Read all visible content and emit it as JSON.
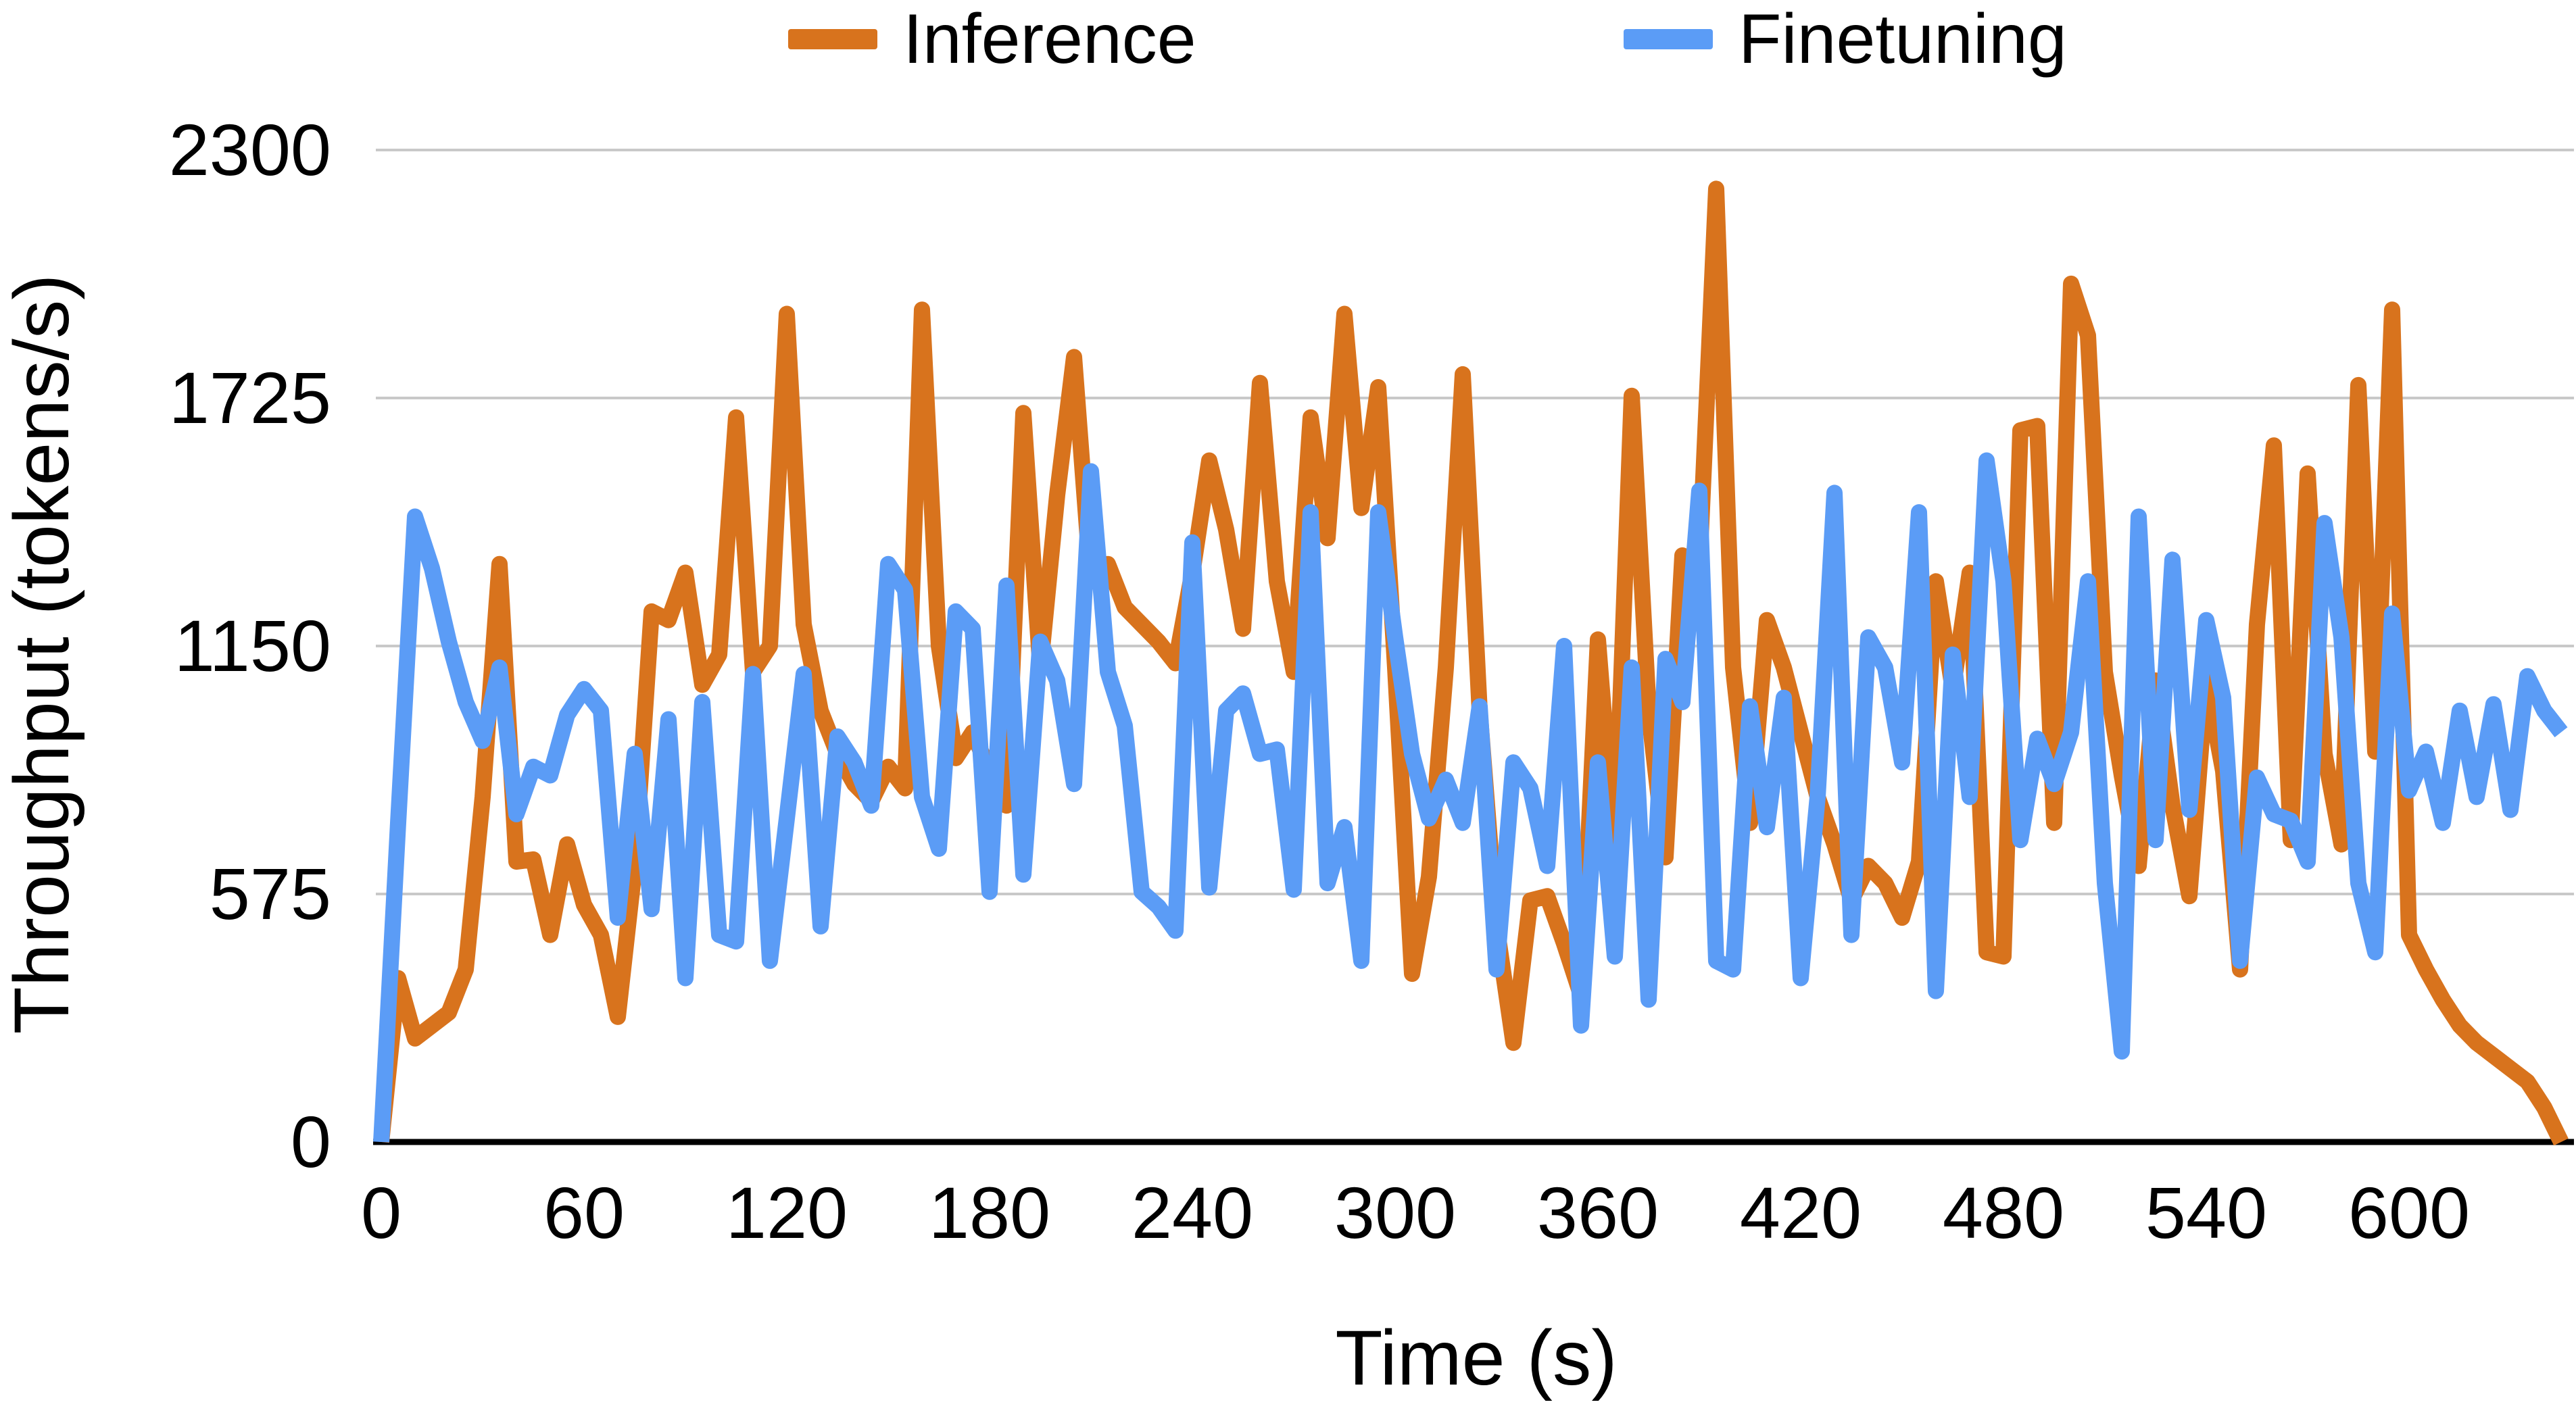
{
  "chart_data": {
    "type": "line",
    "title": "",
    "xlabel": "Time (s)",
    "ylabel": "Throughput (tokens/s)",
    "xlim": [
      0,
      648
    ],
    "ylim": [
      0,
      2300
    ],
    "x_ticks": [
      0,
      60,
      120,
      180,
      240,
      300,
      360,
      420,
      480,
      540,
      600
    ],
    "y_ticks": [
      0,
      575,
      1150,
      1725,
      2300
    ],
    "grid": "horizontal",
    "legend_position": "top",
    "background_color": "#FFFFFF",
    "gridline_color": "#C9C9C9",
    "axis_color": "#000000",
    "text_color": "#000000",
    "series": [
      {
        "name": "Inference",
        "color": "#D8731D",
        "points": [
          [
            0,
            0
          ],
          [
            5,
            380
          ],
          [
            10,
            240
          ],
          [
            15,
            270
          ],
          [
            20,
            300
          ],
          [
            25,
            400
          ],
          [
            30,
            800
          ],
          [
            35,
            1340
          ],
          [
            40,
            650
          ],
          [
            45,
            655
          ],
          [
            50,
            480
          ],
          [
            55,
            690
          ],
          [
            60,
            550
          ],
          [
            65,
            480
          ],
          [
            70,
            290
          ],
          [
            75,
            640
          ],
          [
            80,
            1230
          ],
          [
            85,
            1210
          ],
          [
            90,
            1320
          ],
          [
            95,
            1060
          ],
          [
            100,
            1130
          ],
          [
            105,
            1680
          ],
          [
            110,
            1090
          ],
          [
            115,
            1150
          ],
          [
            120,
            1920
          ],
          [
            125,
            1200
          ],
          [
            130,
            1000
          ],
          [
            135,
            900
          ],
          [
            140,
            830
          ],
          [
            145,
            790
          ],
          [
            150,
            870
          ],
          [
            155,
            820
          ],
          [
            160,
            1930
          ],
          [
            165,
            1150
          ],
          [
            170,
            890
          ],
          [
            175,
            950
          ],
          [
            180,
            860
          ],
          [
            185,
            780
          ],
          [
            190,
            1690
          ],
          [
            195,
            1100
          ],
          [
            200,
            1500
          ],
          [
            205,
            1820
          ],
          [
            210,
            1300
          ],
          [
            215,
            1340
          ],
          [
            220,
            1240
          ],
          [
            225,
            1200
          ],
          [
            230,
            1160
          ],
          [
            235,
            1110
          ],
          [
            240,
            1320
          ],
          [
            245,
            1580
          ],
          [
            250,
            1420
          ],
          [
            255,
            1190
          ],
          [
            260,
            1760
          ],
          [
            265,
            1300
          ],
          [
            270,
            1090
          ],
          [
            275,
            1680
          ],
          [
            280,
            1400
          ],
          [
            285,
            1920
          ],
          [
            290,
            1470
          ],
          [
            295,
            1750
          ],
          [
            300,
            1100
          ],
          [
            305,
            390
          ],
          [
            310,
            615
          ],
          [
            315,
            1100
          ],
          [
            320,
            1780
          ],
          [
            325,
            1000
          ],
          [
            330,
            500
          ],
          [
            335,
            230
          ],
          [
            340,
            560
          ],
          [
            345,
            570
          ],
          [
            350,
            460
          ],
          [
            355,
            340
          ],
          [
            360,
            1165
          ],
          [
            365,
            670
          ],
          [
            370,
            1730
          ],
          [
            375,
            1000
          ],
          [
            380,
            660
          ],
          [
            385,
            1360
          ],
          [
            390,
            1330
          ],
          [
            395,
            2210
          ],
          [
            400,
            1100
          ],
          [
            405,
            740
          ],
          [
            410,
            1210
          ],
          [
            415,
            1100
          ],
          [
            420,
            950
          ],
          [
            425,
            800
          ],
          [
            430,
            690
          ],
          [
            435,
            560
          ],
          [
            440,
            640
          ],
          [
            445,
            600
          ],
          [
            450,
            520
          ],
          [
            455,
            650
          ],
          [
            460,
            1300
          ],
          [
            465,
            1050
          ],
          [
            470,
            1320
          ],
          [
            475,
            440
          ],
          [
            480,
            430
          ],
          [
            485,
            1650
          ],
          [
            490,
            1660
          ],
          [
            495,
            740
          ],
          [
            500,
            1990
          ],
          [
            505,
            1870
          ],
          [
            510,
            1090
          ],
          [
            515,
            850
          ],
          [
            520,
            640
          ],
          [
            525,
            1070
          ],
          [
            530,
            780
          ],
          [
            535,
            570
          ],
          [
            540,
            1070
          ],
          [
            545,
            860
          ],
          [
            550,
            400
          ],
          [
            555,
            1200
          ],
          [
            560,
            1615
          ],
          [
            565,
            700
          ],
          [
            570,
            1550
          ],
          [
            575,
            900
          ],
          [
            580,
            690
          ],
          [
            585,
            1755
          ],
          [
            590,
            905
          ],
          [
            595,
            1930
          ],
          [
            600,
            480
          ],
          [
            605,
            400
          ],
          [
            610,
            330
          ],
          [
            615,
            270
          ],
          [
            620,
            230
          ],
          [
            625,
            200
          ],
          [
            630,
            170
          ],
          [
            635,
            140
          ],
          [
            640,
            80
          ],
          [
            645,
            0
          ]
        ]
      },
      {
        "name": "Finetuning",
        "color": "#5B9CF6",
        "points": [
          [
            0,
            0
          ],
          [
            5,
            740
          ],
          [
            10,
            1450
          ],
          [
            15,
            1330
          ],
          [
            20,
            1160
          ],
          [
            25,
            1020
          ],
          [
            30,
            930
          ],
          [
            35,
            1100
          ],
          [
            40,
            760
          ],
          [
            45,
            870
          ],
          [
            50,
            850
          ],
          [
            55,
            990
          ],
          [
            60,
            1050
          ],
          [
            65,
            1000
          ],
          [
            70,
            520
          ],
          [
            75,
            900
          ],
          [
            80,
            540
          ],
          [
            85,
            980
          ],
          [
            90,
            380
          ],
          [
            95,
            1020
          ],
          [
            100,
            480
          ],
          [
            105,
            465
          ],
          [
            110,
            1085
          ],
          [
            115,
            420
          ],
          [
            120,
            750
          ],
          [
            125,
            1085
          ],
          [
            130,
            500
          ],
          [
            135,
            940
          ],
          [
            140,
            880
          ],
          [
            145,
            780
          ],
          [
            150,
            1340
          ],
          [
            155,
            1280
          ],
          [
            160,
            800
          ],
          [
            165,
            680
          ],
          [
            170,
            1230
          ],
          [
            175,
            1190
          ],
          [
            180,
            580
          ],
          [
            185,
            1290
          ],
          [
            190,
            620
          ],
          [
            195,
            1160
          ],
          [
            200,
            1070
          ],
          [
            205,
            830
          ],
          [
            210,
            1555
          ],
          [
            215,
            1090
          ],
          [
            220,
            965
          ],
          [
            225,
            580
          ],
          [
            230,
            545
          ],
          [
            235,
            490
          ],
          [
            240,
            1390
          ],
          [
            245,
            590
          ],
          [
            250,
            1000
          ],
          [
            255,
            1040
          ],
          [
            260,
            900
          ],
          [
            265,
            910
          ],
          [
            270,
            585
          ],
          [
            275,
            1460
          ],
          [
            280,
            600
          ],
          [
            285,
            730
          ],
          [
            290,
            420
          ],
          [
            295,
            1460
          ],
          [
            300,
            1170
          ],
          [
            305,
            900
          ],
          [
            310,
            750
          ],
          [
            315,
            840
          ],
          [
            320,
            740
          ],
          [
            325,
            1010
          ],
          [
            330,
            400
          ],
          [
            335,
            880
          ],
          [
            340,
            820
          ],
          [
            345,
            640
          ],
          [
            350,
            1150
          ],
          [
            355,
            270
          ],
          [
            360,
            880
          ],
          [
            365,
            430
          ],
          [
            370,
            1100
          ],
          [
            375,
            330
          ],
          [
            380,
            1120
          ],
          [
            385,
            1020
          ],
          [
            390,
            1510
          ],
          [
            395,
            420
          ],
          [
            400,
            400
          ],
          [
            405,
            1010
          ],
          [
            410,
            730
          ],
          [
            415,
            1030
          ],
          [
            420,
            380
          ],
          [
            425,
            800
          ],
          [
            430,
            1505
          ],
          [
            435,
            480
          ],
          [
            440,
            1170
          ],
          [
            445,
            1100
          ],
          [
            450,
            880
          ],
          [
            455,
            1460
          ],
          [
            460,
            350
          ],
          [
            465,
            1130
          ],
          [
            470,
            800
          ],
          [
            475,
            1580
          ],
          [
            480,
            1300
          ],
          [
            485,
            700
          ],
          [
            490,
            935
          ],
          [
            495,
            830
          ],
          [
            500,
            950
          ],
          [
            505,
            1300
          ],
          [
            510,
            600
          ],
          [
            515,
            210
          ],
          [
            520,
            1450
          ],
          [
            525,
            700
          ],
          [
            530,
            1350
          ],
          [
            535,
            770
          ],
          [
            540,
            1210
          ],
          [
            545,
            1030
          ],
          [
            550,
            420
          ],
          [
            555,
            845
          ],
          [
            560,
            760
          ],
          [
            565,
            745
          ],
          [
            570,
            650
          ],
          [
            575,
            1435
          ],
          [
            580,
            1170
          ],
          [
            585,
            600
          ],
          [
            590,
            440
          ],
          [
            595,
            1225
          ],
          [
            600,
            815
          ],
          [
            605,
            905
          ],
          [
            610,
            740
          ],
          [
            615,
            1000
          ],
          [
            620,
            800
          ],
          [
            625,
            1015
          ],
          [
            630,
            770
          ],
          [
            635,
            1080
          ],
          [
            640,
            1000
          ],
          [
            645,
            950
          ]
        ]
      }
    ]
  }
}
